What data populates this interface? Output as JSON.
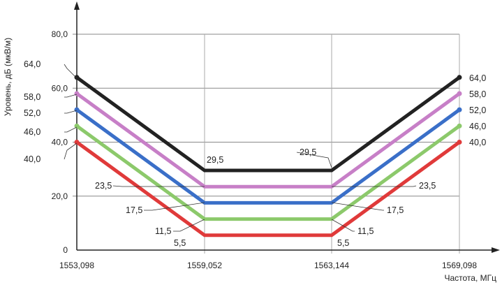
{
  "chart_data": {
    "type": "line",
    "title": "",
    "xlabel": "Частота, МГц",
    "ylabel": "Уровень, дБ (мкВ/м)",
    "x": [
      1553.098,
      1559.052,
      1563.144,
      1569.098
    ],
    "x_tick_labels": [
      "1553,098",
      "1559,052",
      "1563,144",
      "1569,098"
    ],
    "ylim": [
      0,
      80
    ],
    "y_ticks": [
      0,
      20,
      40,
      60,
      80
    ],
    "y_tick_labels": [
      "0",
      "20,0",
      "40,0",
      "60,0",
      "80,0"
    ],
    "grid": true,
    "legend": "none",
    "series": [
      {
        "color": "#222222",
        "values": [
          64.0,
          29.5,
          29.5,
          64.0
        ],
        "labels": [
          "64,0",
          "29,5",
          "29,5",
          "64,0"
        ]
      },
      {
        "color": "#c77fc7",
        "values": [
          58.0,
          23.5,
          23.5,
          58.0
        ],
        "labels": [
          "58,0",
          "23,5",
          "23,5",
          "58,0"
        ]
      },
      {
        "color": "#3a6fc8",
        "values": [
          52.0,
          17.5,
          17.5,
          52.0
        ],
        "labels": [
          "52,0",
          "17,5",
          "17,5",
          "52,0"
        ]
      },
      {
        "color": "#8cc96b",
        "values": [
          46.0,
          11.5,
          11.5,
          46.0
        ],
        "labels": [
          "46,0",
          "11,5",
          "11,5",
          "46,0"
        ]
      },
      {
        "color": "#e03a3a",
        "values": [
          40.0,
          5.5,
          5.5,
          40.0
        ],
        "labels": [
          "40,0",
          "5,5",
          "5,5",
          "40,0"
        ]
      }
    ]
  }
}
